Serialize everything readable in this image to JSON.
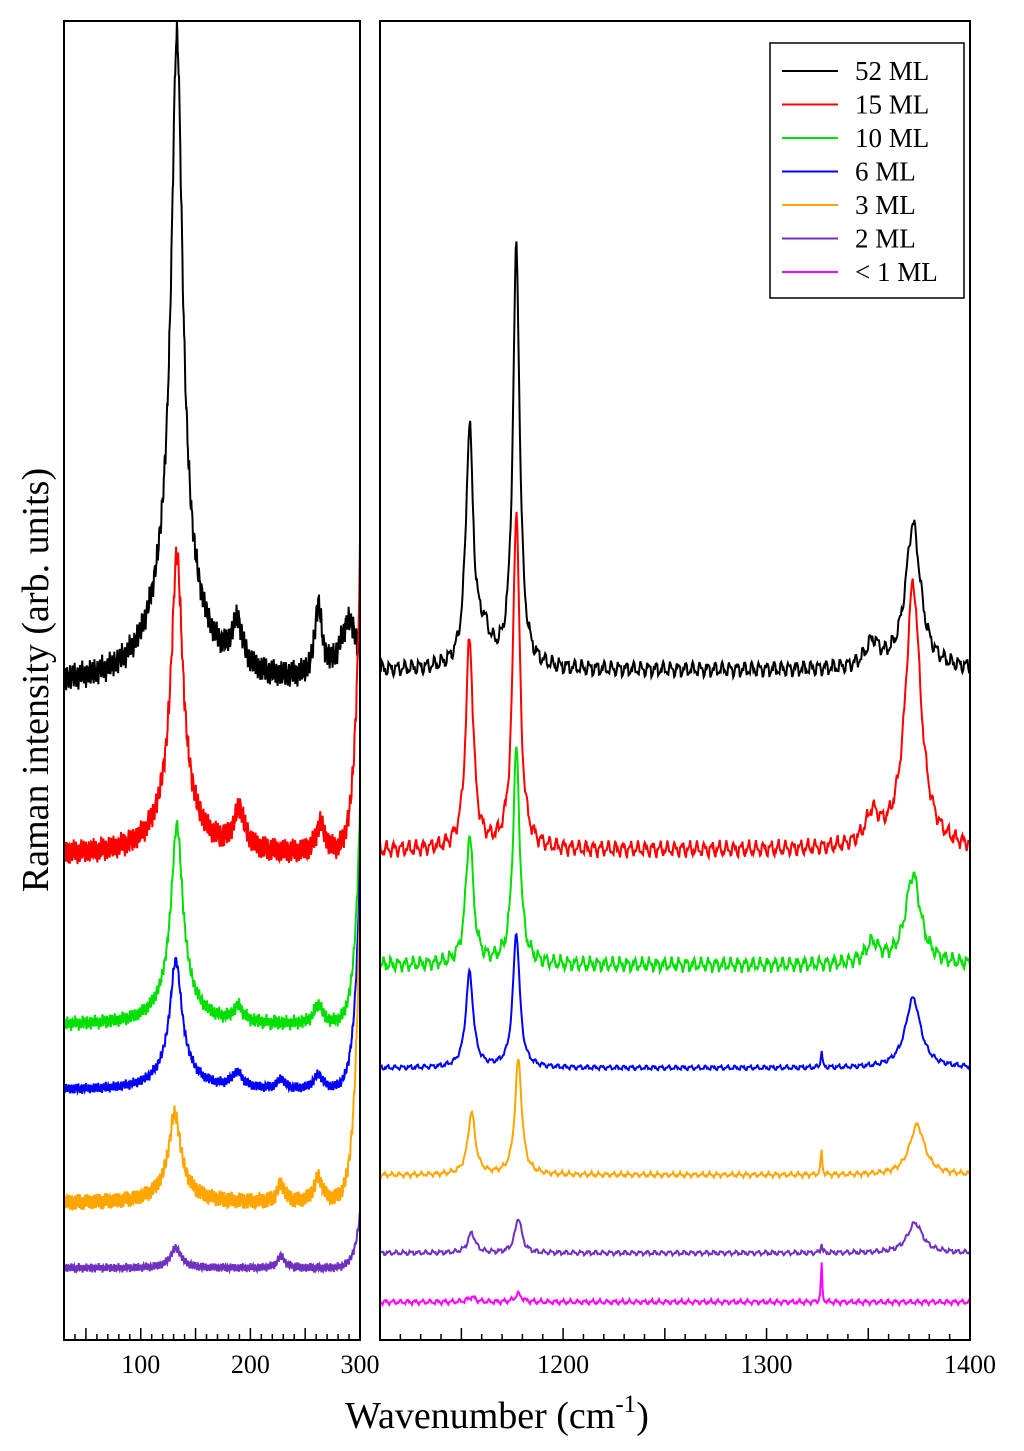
{
  "chart_data": {
    "type": "line",
    "xlabel": "Wavenumber (cm",
    "xlabel_sup": "-1",
    "xlabel_close": ")",
    "ylabel": "Raman intensity (arb. units)",
    "legend": {
      "placement": "top-right"
    },
    "grid": false,
    "panels": [
      {
        "name": "left",
        "xlim": [
          30,
          300
        ],
        "ticks": [
          100,
          200,
          300
        ],
        "tick_labels": [
          "100",
          "200",
          "300"
        ]
      },
      {
        "name": "right",
        "xlim": [
          1110,
          1400
        ],
        "ticks": [
          1200,
          1300,
          1400
        ],
        "tick_labels": [
          "1200",
          "1300",
          "1400"
        ]
      }
    ],
    "series": [
      {
        "name": "52 ML",
        "color": "#000000",
        "left": {
          "baseline": 685,
          "noise": 16,
          "rise": 0,
          "peaks": [
            [
              133,
              6,
              530
            ],
            [
              132,
              22,
              120
            ],
            [
              188,
              6,
              45
            ],
            [
              262,
              4,
              70
            ],
            [
              290,
              10,
              60
            ]
          ]
        },
        "right": {
          "baseline": 670,
          "noise": 10,
          "peaks": [
            [
              1154,
              2.2,
              235
            ],
            [
              1177,
              2.0,
              420
            ],
            [
              1161,
              4,
              30
            ],
            [
              1372,
              4.5,
              145
            ],
            [
              1352,
              4,
              25
            ]
          ]
        }
      },
      {
        "name": "15 ML",
        "color": "#ff0000",
        "left": {
          "baseline": 855,
          "noise": 16,
          "rise": 300,
          "peaks": [
            [
              133,
              6,
              240
            ],
            [
              133,
              18,
              60
            ],
            [
              190,
              6,
              40
            ],
            [
              264,
              5,
              30
            ]
          ]
        },
        "right": {
          "baseline": 850,
          "noise": 10,
          "peaks": [
            [
              1154,
              2.2,
              210
            ],
            [
              1177,
              2.0,
              340
            ],
            [
              1372,
              4.5,
              265
            ],
            [
              1352,
              4,
              30
            ]
          ]
        }
      },
      {
        "name": "10 ML",
        "color": "#00e000",
        "left": {
          "baseline": 1025,
          "noise": 8,
          "rise": 220,
          "peaks": [
            [
              133,
              6,
              160
            ],
            [
              133,
              16,
              40
            ],
            [
              189,
              5,
              15
            ],
            [
              262,
              5,
              20
            ]
          ]
        },
        "right": {
          "baseline": 965,
          "noise": 9,
          "peaks": [
            [
              1154,
              2.2,
              130
            ],
            [
              1177,
              2.0,
              215
            ],
            [
              1372,
              4.5,
              90
            ],
            [
              1352,
              4,
              20
            ]
          ]
        }
      },
      {
        "name": "6 ML",
        "color": "#0000ff",
        "left": {
          "baseline": 1090,
          "noise": 6,
          "rise": 230,
          "peaks": [
            [
              132,
              6,
              100
            ],
            [
              132,
              16,
              30
            ],
            [
              188,
              6,
              15
            ],
            [
              228,
              4,
              10
            ],
            [
              262,
              5,
              15
            ]
          ]
        },
        "right": {
          "baseline": 1068,
          "noise": 3,
          "peaks": [
            [
              1154,
              2.2,
              95
            ],
            [
              1177,
              2.0,
              135
            ],
            [
              1327,
              0.4,
              18
            ],
            [
              1372,
              4.5,
              70
            ]
          ]
        }
      },
      {
        "name": "3 ML",
        "color": "#ffa500",
        "left": {
          "baseline": 1203,
          "noise": 11,
          "rise": 310,
          "peaks": [
            [
              131,
              6,
              70
            ],
            [
              131,
              16,
              20
            ],
            [
              228,
              4,
              18
            ],
            [
              262,
              5,
              25
            ]
          ]
        },
        "right": {
          "baseline": 1175,
          "noise": 3,
          "peaks": [
            [
              1155,
              2.2,
              62
            ],
            [
              1178,
              2.0,
              115
            ],
            [
              1327,
              0.4,
              26
            ],
            [
              1374,
              4.5,
              50
            ]
          ]
        }
      },
      {
        "name": "2 ML",
        "color": "#7030c0",
        "left": {
          "baseline": 1268,
          "noise": 5,
          "rise": 55,
          "peaks": [
            [
              132,
              6,
              20
            ],
            [
              228,
              4,
              12
            ]
          ]
        },
        "right": {
          "baseline": 1253,
          "noise": 3,
          "peaks": [
            [
              1155,
              2.2,
              20
            ],
            [
              1178,
              2.0,
              35
            ],
            [
              1327,
              0.4,
              10
            ],
            [
              1373,
              4.5,
              30
            ]
          ]
        }
      },
      {
        "name": "< 1 ML",
        "color": "#ff00ff",
        "left": null,
        "right": {
          "baseline": 1302,
          "noise": 3,
          "peaks": [
            [
              1155,
              2.2,
              5
            ],
            [
              1178,
              2.0,
              8
            ],
            [
              1327,
              0.35,
              40
            ]
          ]
        }
      }
    ]
  }
}
